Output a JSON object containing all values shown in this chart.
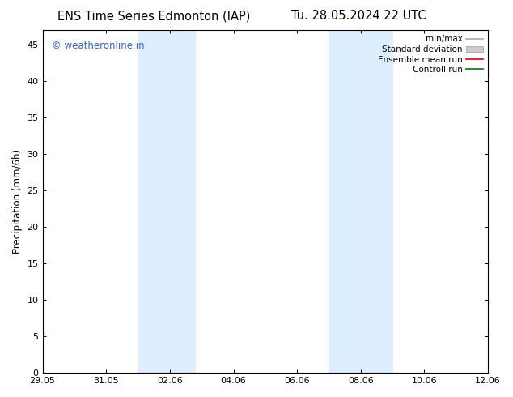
{
  "title_left": "ENS Time Series Edmonton (IAP)",
  "title_right": "Tu. 28.05.2024 22 UTC",
  "ylabel": "Precipitation (mm/6h)",
  "xlim_numeric": [
    0,
    14
  ],
  "xtick_positions": [
    0,
    2,
    4,
    6,
    8,
    10,
    12,
    14
  ],
  "xtick_labels": [
    "29.05",
    "31.05",
    "02.06",
    "04.06",
    "06.06",
    "08.06",
    "10.06",
    "12.06"
  ],
  "ylim": [
    0,
    47
  ],
  "ytick_positions": [
    0,
    5,
    10,
    15,
    20,
    25,
    30,
    35,
    40,
    45
  ],
  "ytick_labels": [
    "0",
    "5",
    "10",
    "15",
    "20",
    "25",
    "30",
    "35",
    "40",
    "45"
  ],
  "shaded_bands": [
    {
      "x_start": 3.0,
      "x_end": 4.8
    },
    {
      "x_start": 9.0,
      "x_end": 11.0
    }
  ],
  "band_color": "#ddeeff",
  "background_color": "#ffffff",
  "watermark_text": "© weatheronline.in",
  "watermark_color": "#3366cc",
  "legend_entries": [
    {
      "label": "min/max",
      "color": "#aaaaaa",
      "lw": 1.2,
      "type": "line"
    },
    {
      "label": "Standard deviation",
      "color": "#cccccc",
      "lw": 8,
      "type": "patch"
    },
    {
      "label": "Ensemble mean run",
      "color": "#dd0000",
      "lw": 1.2,
      "type": "line"
    },
    {
      "label": "Controll run",
      "color": "#007700",
      "lw": 1.2,
      "type": "line"
    }
  ],
  "title_fontsize": 10.5,
  "axis_fontsize": 8.5,
  "tick_fontsize": 8,
  "watermark_fontsize": 8.5,
  "legend_fontsize": 7.5
}
